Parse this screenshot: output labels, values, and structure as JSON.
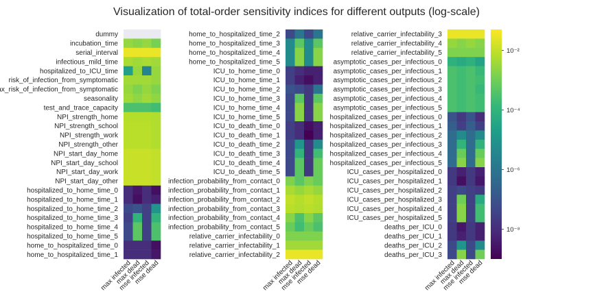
{
  "chart_data": {
    "type": "heatmap",
    "title": "Visualization of total-order sensitivity indices for different outputs (log-scale)",
    "colormap": "viridis",
    "log_scale": true,
    "color_range": [
      1e-09,
      0.05
    ],
    "columns": [
      "max infected",
      "max dead",
      "mse infected",
      "mse dead"
    ],
    "colorbar": {
      "ticks": [
        {
          "value": 0.01,
          "label": "10⁻²"
        },
        {
          "value": 0.0001,
          "label": "10⁻⁴"
        },
        {
          "value": 1e-06,
          "label": "10⁻⁶"
        },
        {
          "value": 1e-08,
          "label": "10⁻⁸"
        }
      ]
    },
    "panels": [
      {
        "rows": [
          {
            "label": "dummy",
            "values": [
              null,
              null,
              null,
              null
            ]
          },
          {
            "label": "incubation_time",
            "values": [
              0.0028,
              0.002,
              0.0028,
              0.0012
            ]
          },
          {
            "label": "serial_interval",
            "values": [
              0.03,
              0.03,
              0.03,
              0.03
            ]
          },
          {
            "label": "infectious_mild_time",
            "values": [
              0.005,
              0.004,
              0.005,
              0.004
            ]
          },
          {
            "label": "hospitalized_to_ICU_time",
            "values": [
              2e-05,
              0.003,
              3e-06,
              0.003
            ]
          },
          {
            "label": "risk_of_infection_from_symptomatic",
            "values": [
              0.004,
              0.004,
              0.004,
              0.003
            ]
          },
          {
            "label": "max_risk_of_infection_from_symptomatic",
            "values": [
              0.003,
              0.0015,
              0.003,
              0.0015
            ]
          },
          {
            "label": "seasonality",
            "values": [
              0.004,
              0.0025,
              0.004,
              0.0025
            ]
          },
          {
            "label": "test_and_trace_capacity",
            "values": [
              0.0003,
              0.0003,
              0.0003,
              0.0002
            ]
          },
          {
            "label": "NPI_strength_home",
            "values": [
              0.007,
              0.007,
              0.007,
              0.006
            ]
          },
          {
            "label": "NPI_strength_school",
            "values": [
              0.008,
              0.008,
              0.008,
              0.006
            ]
          },
          {
            "label": "NPI_strength_work",
            "values": [
              0.008,
              0.008,
              0.008,
              0.006
            ]
          },
          {
            "label": "NPI_strength_other",
            "values": [
              0.008,
              0.008,
              0.008,
              0.006
            ]
          },
          {
            "label": "NPI_start_day_home",
            "values": [
              0.012,
              0.012,
              0.012,
              0.01
            ]
          },
          {
            "label": "NPI_start_day_school",
            "values": [
              0.012,
              0.012,
              0.012,
              0.01
            ]
          },
          {
            "label": "NPI_start_day_work",
            "values": [
              0.012,
              0.012,
              0.012,
              0.01
            ]
          },
          {
            "label": "NPI_start_day_other",
            "values": [
              0.012,
              0.012,
              0.012,
              0.01
            ]
          },
          {
            "label": "hospitalized_to_home_time_0",
            "values": [
              1e-08,
              3e-09,
              1e-08,
              2e-09
            ]
          },
          {
            "label": "hospitalized_to_home_time_1",
            "values": [
              1e-08,
              2e-09,
              1e-08,
              5e-09
            ]
          },
          {
            "label": "hospitalized_to_home_time_2",
            "values": [
              5e-08,
              1e-07,
              3e-08,
              1e-05
            ]
          },
          {
            "label": "hospitalized_to_home_time_3",
            "values": [
              3e-08,
              0.0001,
              3e-08,
              0.0001
            ]
          },
          {
            "label": "hospitalized_to_home_time_4",
            "values": [
              5e-08,
              0.0005,
              3e-08,
              0.0003
            ]
          },
          {
            "label": "hospitalized_to_home_time_5",
            "values": [
              5e-08,
              0.0005,
              3e-08,
              0.0003
            ]
          },
          {
            "label": "home_to_hospitalized_time_0",
            "values": [
              1e-08,
              1e-08,
              1e-08,
              2e-09
            ]
          },
          {
            "label": "home_to_hospitalized_time_1",
            "values": [
              1e-08,
              1e-08,
              1e-08,
              3e-09
            ]
          }
        ]
      },
      {
        "rows": [
          {
            "label": "home_to_hospitalized_time_2",
            "values": [
              5e-08,
              1e-06,
              5e-08,
              1e-06
            ]
          },
          {
            "label": "home_to_hospitalized_time_3",
            "values": [
              5e-06,
              0.0005,
              5e-06,
              0.0005
            ]
          },
          {
            "label": "home_to_hospitalized_time_4",
            "values": [
              5e-06,
              0.002,
              5e-06,
              0.002
            ]
          },
          {
            "label": "home_to_hospitalized_time_5",
            "values": [
              5e-06,
              0.002,
              5e-06,
              0.002
            ]
          },
          {
            "label": "ICU_to_home_time_0",
            "values": [
              3e-08,
              1e-08,
              5e-09,
              5e-09
            ]
          },
          {
            "label": "ICU_to_home_time_1",
            "values": [
              3e-08,
              5e-09,
              2e-09,
              5e-09
            ]
          },
          {
            "label": "ICU_to_home_time_2",
            "values": [
              1e-07,
              5e-08,
              2e-08,
              1e-06
            ]
          },
          {
            "label": "ICU_to_home_time_3",
            "values": [
              5e-08,
              0.0005,
              2e-08,
              0.0005
            ]
          },
          {
            "label": "ICU_to_home_time_4",
            "values": [
              5e-08,
              0.002,
              2e-08,
              0.002
            ]
          },
          {
            "label": "ICU_to_home_time_5",
            "values": [
              5e-08,
              0.002,
              2e-08,
              0.002
            ]
          },
          {
            "label": "ICU_to_death_time_0",
            "values": [
              3e-08,
              1e-08,
              2e-09,
              5e-09
            ]
          },
          {
            "label": "ICU_to_death_time_1",
            "values": [
              3e-08,
              1e-08,
              1e-09,
              5e-09
            ]
          },
          {
            "label": "ICU_to_death_time_2",
            "values": [
              5e-08,
              1e-05,
              2e-08,
              5e-06
            ]
          },
          {
            "label": "ICU_to_death_time_3",
            "values": [
              5e-08,
              0.0001,
              2e-08,
              0.0002
            ]
          },
          {
            "label": "ICU_to_death_time_4",
            "values": [
              5e-08,
              0.0005,
              2e-08,
              0.0008
            ]
          },
          {
            "label": "ICU_to_death_time_5",
            "values": [
              5e-08,
              0.0005,
              2e-08,
              0.0008
            ]
          },
          {
            "label": "infection_probability_from_contact_0",
            "values": [
              0.0015,
              0.0005,
              0.0015,
              0.0008
            ]
          },
          {
            "label": "infection_probability_from_contact_1",
            "values": [
              0.005,
              0.003,
              0.005,
              0.003
            ]
          },
          {
            "label": "infection_probability_from_contact_2",
            "values": [
              0.01,
              0.007,
              0.01,
              0.007
            ]
          },
          {
            "label": "infection_probability_from_contact_3",
            "values": [
              0.008,
              0.006,
              0.008,
              0.006
            ]
          },
          {
            "label": "infection_probability_from_contact_4",
            "values": [
              0.002,
              0.0003,
              0.002,
              0.0005
            ]
          },
          {
            "label": "infection_probability_from_contact_5",
            "values": [
              0.0008,
              0.0002,
              0.0008,
              0.0003
            ]
          },
          {
            "label": "relative_carrier_infectability_0",
            "values": [
              0.0015,
              0.0015,
              0.0015,
              0.0015
            ]
          },
          {
            "label": "relative_carrier_infectability_1",
            "values": [
              0.004,
              0.004,
              0.004,
              0.004
            ]
          },
          {
            "label": "relative_carrier_infectability_2",
            "values": [
              0.03,
              0.03,
              0.03,
              0.03
            ]
          }
        ]
      },
      {
        "rows": [
          {
            "label": "relative_carrier_infectability_3",
            "values": [
              0.03,
              0.03,
              0.03,
              0.03
            ]
          },
          {
            "label": "relative_carrier_infectability_4",
            "values": [
              0.003,
              0.002,
              0.003,
              0.002
            ]
          },
          {
            "label": "relative_carrier_infectability_5",
            "values": [
              0.0015,
              0.0015,
              0.0015,
              0.0015
            ]
          },
          {
            "label": "asymptotic_cases_per_infectious_0",
            "values": [
              8e-05,
              5e-05,
              8e-05,
              3e-05
            ]
          },
          {
            "label": "asymptotic_cases_per_infectious_1",
            "values": [
              0.0003,
              0.0002,
              0.0003,
              0.00015
            ]
          },
          {
            "label": "asymptotic_cases_per_infectious_2",
            "values": [
              0.0003,
              0.0002,
              0.0003,
              0.0002
            ]
          },
          {
            "label": "asymptotic_cases_per_infectious_3",
            "values": [
              0.0003,
              0.0002,
              0.0003,
              0.00015
            ]
          },
          {
            "label": "asymptotic_cases_per_infectious_4",
            "values": [
              0.0003,
              0.0002,
              0.0003,
              0.0002
            ]
          },
          {
            "label": "asymptotic_cases_per_infectious_5",
            "values": [
              0.0003,
              0.0002,
              0.0003,
              0.0002
            ]
          },
          {
            "label": "hospitalized_cases_per_infectious_0",
            "values": [
              1e-07,
              2e-08,
              1e-07,
              1e-08
            ]
          },
          {
            "label": "hospitalized_cases_per_infectious_1",
            "values": [
              2e-07,
              3e-08,
              2e-07,
              3e-08
            ]
          },
          {
            "label": "hospitalized_cases_per_infectious_2",
            "values": [
              5e-07,
              5e-06,
              5e-07,
              5e-06
            ]
          },
          {
            "label": "hospitalized_cases_per_infectious_3",
            "values": [
              5e-07,
              0.0001,
              5e-07,
              0.0001
            ]
          },
          {
            "label": "hospitalized_cases_per_infectious_4",
            "values": [
              5e-07,
              0.0008,
              5e-07,
              0.0008
            ]
          },
          {
            "label": "hospitalized_cases_per_infectious_5",
            "values": [
              5e-07,
              0.002,
              5e-07,
              0.002
            ]
          },
          {
            "label": "ICU_cases_per_hospitalized_0",
            "values": [
              2e-08,
              5e-09,
              2e-08,
              5e-09
            ]
          },
          {
            "label": "ICU_cases_per_hospitalized_1",
            "values": [
              2e-08,
              2e-09,
              2e-08,
              3e-09
            ]
          },
          {
            "label": "ICU_cases_per_hospitalized_2",
            "values": [
              3e-08,
              5e-08,
              3e-08,
              2e-08
            ]
          },
          {
            "label": "ICU_cases_per_hospitalized_3",
            "values": [
              3e-08,
              0.001,
              3e-08,
              5e-05
            ]
          },
          {
            "label": "ICU_cases_per_hospitalized_4",
            "values": [
              3e-08,
              0.002,
              3e-08,
              0.0002
            ]
          },
          {
            "label": "ICU_cases_per_hospitalized_5",
            "values": [
              3e-08,
              0.002,
              3e-08,
              0.0002
            ]
          },
          {
            "label": "deaths_per_ICU_0",
            "values": [
              2e-08,
              3e-09,
              2e-08,
              5e-09
            ]
          },
          {
            "label": "deaths_per_ICU_1",
            "values": [
              2e-08,
              5e-09,
              2e-08,
              5e-09
            ]
          },
          {
            "label": "deaths_per_ICU_2",
            "values": [
              5e-08,
              1e-05,
              5e-08,
              5e-06
            ]
          },
          {
            "label": "deaths_per_ICU_3",
            "values": [
              5e-08,
              0.002,
              5e-08,
              0.001
            ]
          }
        ]
      }
    ]
  }
}
